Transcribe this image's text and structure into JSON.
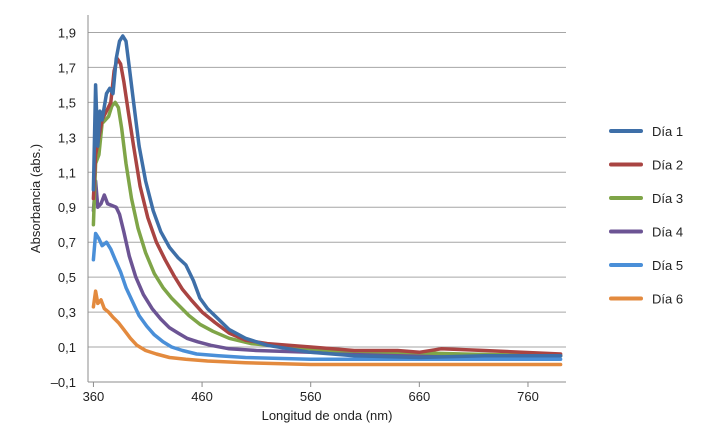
{
  "chart_data": {
    "type": "line",
    "title": "",
    "xlabel": "Longitud de onda (nm)",
    "ylabel": "Absorbancia (abs.)",
    "xlim": [
      355,
      795
    ],
    "ylim": [
      -0.1,
      2.0
    ],
    "x_ticks": [
      360,
      460,
      560,
      660,
      760
    ],
    "x_tick_labels": [
      "360",
      "460",
      "560",
      "660",
      "760"
    ],
    "y_ticks": [
      -0.1,
      0.1,
      0.3,
      0.5,
      0.7,
      0.9,
      1.1,
      1.3,
      1.5,
      1.7,
      1.9
    ],
    "y_tick_labels": [
      "–0,1",
      "0,1",
      "0,3",
      "0,5",
      "0,7",
      "0,9",
      "1,1",
      "1,3",
      "1,5",
      "1,7",
      "1,9"
    ],
    "grid": "horizontal",
    "legend_position": "right",
    "series": [
      {
        "name": "Día 1",
        "color": "#3E6FA8",
        "points": [
          [
            360,
            1.0
          ],
          [
            362,
            1.6
          ],
          [
            364,
            1.25
          ],
          [
            366,
            1.45
          ],
          [
            368,
            1.4
          ],
          [
            372,
            1.55
          ],
          [
            375,
            1.58
          ],
          [
            378,
            1.55
          ],
          [
            381,
            1.75
          ],
          [
            384,
            1.85
          ],
          [
            387,
            1.88
          ],
          [
            390,
            1.85
          ],
          [
            393,
            1.7
          ],
          [
            397,
            1.5
          ],
          [
            402,
            1.25
          ],
          [
            408,
            1.05
          ],
          [
            415,
            0.88
          ],
          [
            422,
            0.76
          ],
          [
            430,
            0.67
          ],
          [
            438,
            0.61
          ],
          [
            445,
            0.57
          ],
          [
            452,
            0.48
          ],
          [
            458,
            0.38
          ],
          [
            465,
            0.32
          ],
          [
            475,
            0.26
          ],
          [
            485,
            0.2
          ],
          [
            500,
            0.15
          ],
          [
            520,
            0.11
          ],
          [
            560,
            0.07
          ],
          [
            600,
            0.05
          ],
          [
            660,
            0.04
          ],
          [
            720,
            0.05
          ],
          [
            790,
            0.05
          ]
        ]
      },
      {
        "name": "Día 2",
        "color": "#A94442",
        "points": [
          [
            360,
            0.95
          ],
          [
            362,
            1.2
          ],
          [
            365,
            1.3
          ],
          [
            368,
            1.4
          ],
          [
            372,
            1.45
          ],
          [
            376,
            1.5
          ],
          [
            379,
            1.68
          ],
          [
            382,
            1.75
          ],
          [
            385,
            1.72
          ],
          [
            388,
            1.62
          ],
          [
            392,
            1.45
          ],
          [
            397,
            1.25
          ],
          [
            403,
            1.02
          ],
          [
            410,
            0.84
          ],
          [
            418,
            0.7
          ],
          [
            426,
            0.6
          ],
          [
            434,
            0.51
          ],
          [
            442,
            0.43
          ],
          [
            450,
            0.37
          ],
          [
            460,
            0.3
          ],
          [
            472,
            0.24
          ],
          [
            485,
            0.18
          ],
          [
            500,
            0.14
          ],
          [
            520,
            0.12
          ],
          [
            560,
            0.1
          ],
          [
            600,
            0.08
          ],
          [
            640,
            0.08
          ],
          [
            660,
            0.07
          ],
          [
            680,
            0.09
          ],
          [
            720,
            0.08
          ],
          [
            790,
            0.06
          ]
        ]
      },
      {
        "name": "Día 3",
        "color": "#7FA548",
        "points": [
          [
            360,
            0.8
          ],
          [
            362,
            1.15
          ],
          [
            365,
            1.2
          ],
          [
            368,
            1.38
          ],
          [
            371,
            1.4
          ],
          [
            374,
            1.42
          ],
          [
            377,
            1.48
          ],
          [
            380,
            1.5
          ],
          [
            383,
            1.47
          ],
          [
            386,
            1.35
          ],
          [
            390,
            1.15
          ],
          [
            395,
            0.95
          ],
          [
            401,
            0.78
          ],
          [
            408,
            0.64
          ],
          [
            416,
            0.52
          ],
          [
            424,
            0.44
          ],
          [
            432,
            0.38
          ],
          [
            440,
            0.33
          ],
          [
            448,
            0.28
          ],
          [
            458,
            0.23
          ],
          [
            470,
            0.19
          ],
          [
            485,
            0.15
          ],
          [
            505,
            0.12
          ],
          [
            540,
            0.1
          ],
          [
            580,
            0.08
          ],
          [
            640,
            0.07
          ],
          [
            700,
            0.06
          ],
          [
            790,
            0.05
          ]
        ]
      },
      {
        "name": "Día 4",
        "color": "#6C5494",
        "points": [
          [
            360,
            0.88
          ],
          [
            362,
            1.05
          ],
          [
            364,
            0.9
          ],
          [
            367,
            0.92
          ],
          [
            370,
            0.97
          ],
          [
            373,
            0.92
          ],
          [
            377,
            0.91
          ],
          [
            381,
            0.9
          ],
          [
            384,
            0.86
          ],
          [
            388,
            0.76
          ],
          [
            393,
            0.62
          ],
          [
            399,
            0.5
          ],
          [
            406,
            0.4
          ],
          [
            414,
            0.32
          ],
          [
            422,
            0.26
          ],
          [
            430,
            0.21
          ],
          [
            438,
            0.18
          ],
          [
            446,
            0.15
          ],
          [
            456,
            0.13
          ],
          [
            468,
            0.11
          ],
          [
            485,
            0.09
          ],
          [
            510,
            0.08
          ],
          [
            560,
            0.07
          ],
          [
            620,
            0.06
          ],
          [
            700,
            0.05
          ],
          [
            790,
            0.05
          ]
        ]
      },
      {
        "name": "Día 5",
        "color": "#4A8FD8",
        "points": [
          [
            360,
            0.6
          ],
          [
            362,
            0.75
          ],
          [
            365,
            0.72
          ],
          [
            368,
            0.68
          ],
          [
            372,
            0.7
          ],
          [
            376,
            0.66
          ],
          [
            380,
            0.6
          ],
          [
            385,
            0.53
          ],
          [
            390,
            0.44
          ],
          [
            396,
            0.36
          ],
          [
            402,
            0.28
          ],
          [
            409,
            0.22
          ],
          [
            416,
            0.17
          ],
          [
            424,
            0.13
          ],
          [
            432,
            0.1
          ],
          [
            442,
            0.08
          ],
          [
            455,
            0.06
          ],
          [
            475,
            0.05
          ],
          [
            500,
            0.04
          ],
          [
            560,
            0.03
          ],
          [
            640,
            0.03
          ],
          [
            720,
            0.03
          ],
          [
            790,
            0.03
          ]
        ]
      },
      {
        "name": "Día 6",
        "color": "#E38A3E",
        "points": [
          [
            360,
            0.33
          ],
          [
            362,
            0.42
          ],
          [
            364,
            0.35
          ],
          [
            367,
            0.37
          ],
          [
            370,
            0.32
          ],
          [
            374,
            0.3
          ],
          [
            378,
            0.27
          ],
          [
            383,
            0.24
          ],
          [
            388,
            0.2
          ],
          [
            394,
            0.15
          ],
          [
            400,
            0.11
          ],
          [
            408,
            0.08
          ],
          [
            418,
            0.06
          ],
          [
            430,
            0.04
          ],
          [
            445,
            0.03
          ],
          [
            465,
            0.02
          ],
          [
            500,
            0.01
          ],
          [
            560,
            0.0
          ],
          [
            640,
            0.0
          ],
          [
            720,
            0.0
          ],
          [
            790,
            0.0
          ]
        ]
      }
    ]
  }
}
